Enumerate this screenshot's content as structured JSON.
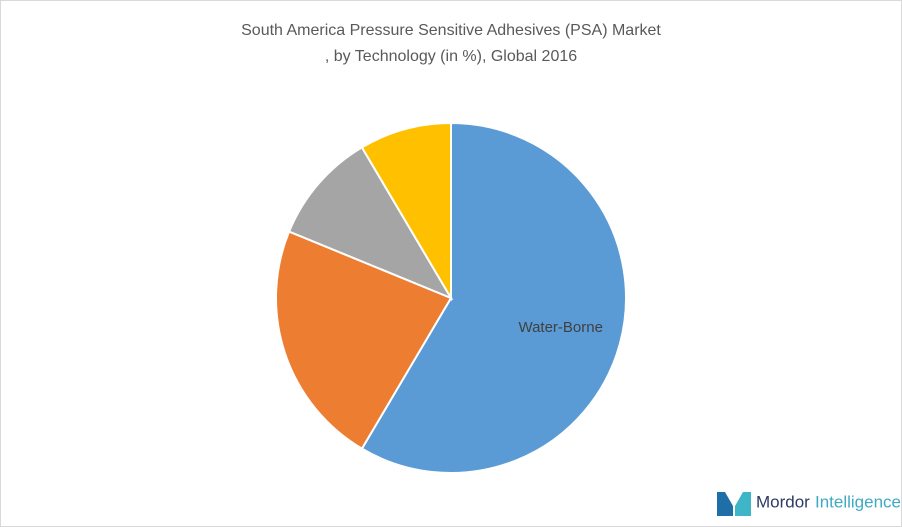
{
  "chart_data": {
    "type": "pie",
    "title": [
      "South America Pressure Sensitive Adhesives (PSA) Market",
      ", by Technology (in %), Global 2016"
    ],
    "categories": [
      "Water-Borne",
      null,
      null,
      null
    ],
    "values": [
      58.5,
      22.7,
      10.3,
      8.5
    ],
    "colors": [
      "#5b9bd5",
      "#ed7d31",
      "#a5a5a5",
      "#ffc000"
    ]
  },
  "logo": {
    "brand": [
      "Mordor",
      "Intelligence"
    ]
  }
}
